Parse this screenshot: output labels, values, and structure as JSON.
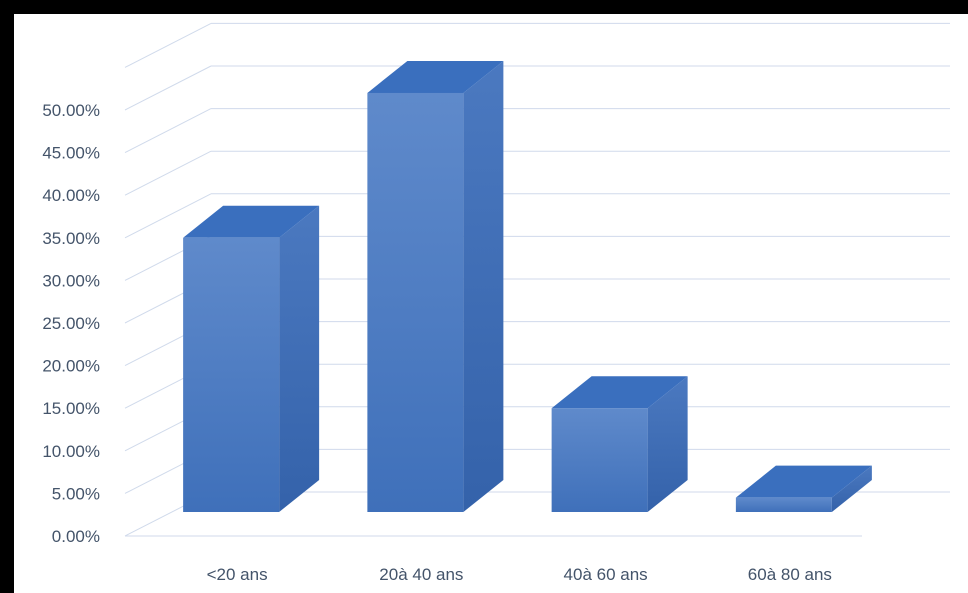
{
  "chart_data": {
    "type": "bar",
    "style": "3d-column",
    "categories": [
      "<20 ans",
      "20à 40 ans",
      "40à 60 ans",
      "60à 80 ans"
    ],
    "values": [
      0.35,
      0.52,
      0.15,
      0.045
    ],
    "ylim": [
      0,
      0.5
    ],
    "ytick_labels": [
      "0.00%",
      "5.00%",
      "10.00%",
      "15.00%",
      "20.00%",
      "25.00%",
      "30.00%",
      "35.00%",
      "40.00%",
      "45.00%",
      "50.00%"
    ],
    "grid": true,
    "legend": "none",
    "colors": {
      "bar": "#4A7CC4",
      "bar_top": "#3A6FBE",
      "bar_side": "#3563AB",
      "grid": "#D0DAEB",
      "text": "#44546A",
      "frame": "#000000",
      "background": "#FFFFFF"
    }
  }
}
